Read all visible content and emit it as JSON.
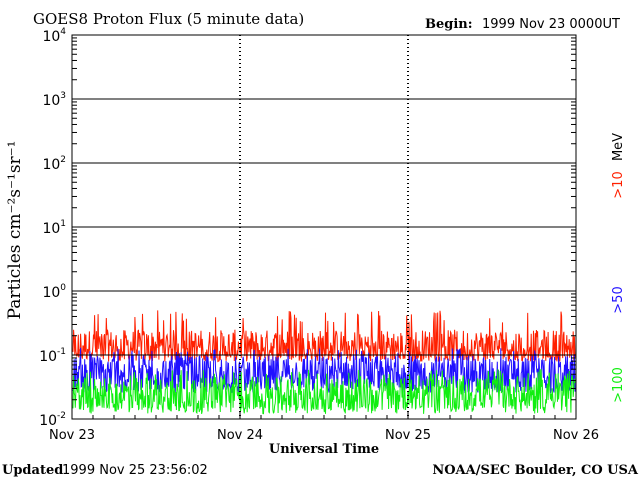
{
  "header": {
    "title": "GOES8 Proton Flux (5 minute data)",
    "begin_label": "Begin:",
    "begin_value": "1999 Nov 23 0000UT"
  },
  "footer": {
    "updated_label": "Updated",
    "updated_value": "1999 Nov 25 23:56:02",
    "credit": "NOAA/SEC Boulder, CO USA"
  },
  "chart_data": {
    "type": "line",
    "title": "GOES8 Proton Flux (5 minute data)",
    "xlabel": "Universal Time",
    "ylabel": "Particles cm⁻²s⁻¹sr⁻¹",
    "y_scale": "log",
    "ylim": [
      0.01,
      10000
    ],
    "y_tick_labels": [
      {
        "value": 0.01,
        "base": "10",
        "exp": "-2"
      },
      {
        "value": 0.1,
        "base": "10",
        "exp": "-1"
      },
      {
        "value": 1,
        "base": "10",
        "exp": "0"
      },
      {
        "value": 10,
        "base": "10",
        "exp": "1"
      },
      {
        "value": 100,
        "base": "10",
        "exp": "2"
      },
      {
        "value": 1000,
        "base": "10",
        "exp": "3"
      },
      {
        "value": 10000,
        "base": "10",
        "exp": "4"
      }
    ],
    "x_tick_labels": [
      "Nov 23",
      "Nov 24",
      "Nov 25",
      "Nov 26"
    ],
    "xlim": [
      "1999-11-23",
      "1999-11-26"
    ],
    "grid": true,
    "legend": {
      "placement": "right",
      "unit": "MeV",
      "entries": [
        ">10",
        ">50",
        ">100"
      ]
    },
    "series": [
      {
        "name": ">10",
        "color": "#ff2000",
        "typical": 0.14,
        "low": 0.08,
        "high": 0.5
      },
      {
        "name": ">50",
        "color": "#2010ff",
        "typical": 0.055,
        "low": 0.025,
        "high": 0.13
      },
      {
        "name": ">100",
        "color": "#10ee10",
        "typical": 0.025,
        "low": 0.012,
        "high": 0.06
      }
    ]
  }
}
